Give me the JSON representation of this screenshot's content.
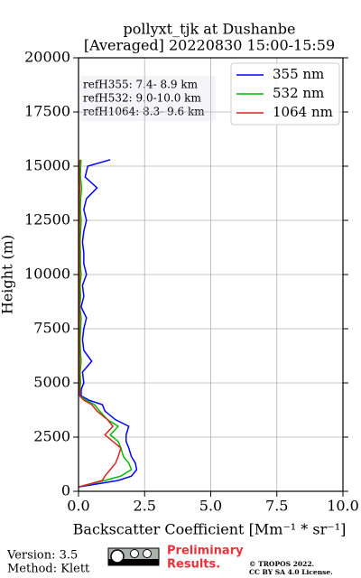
{
  "chart_data": {
    "type": "profile",
    "title": [
      "pollyxt_tjk at Dushanbe",
      "[Averaged] 20220830 15:00-15:59"
    ],
    "x_label": "Backscatter Coefficient [Mm⁻¹ * sr⁻¹]",
    "y_label": "Height (m)",
    "xlim": [
      0,
      10
    ],
    "xticks": [
      {
        "value": 0,
        "label": "0.0"
      },
      {
        "value": 2.5,
        "label": "2.5"
      },
      {
        "value": 5,
        "label": "5.0"
      },
      {
        "value": 7.5,
        "label": "7.5"
      },
      {
        "value": 10,
        "label": "10.0"
      }
    ],
    "ylim": [
      0,
      20000
    ],
    "yticks": [
      0,
      2500,
      5000,
      7500,
      10000,
      12500,
      15000,
      17500,
      20000
    ],
    "grid": true,
    "legend": "upper right",
    "heights": [
      200,
      500,
      700,
      1000,
      1300,
      1600,
      2000,
      2300,
      2600,
      3000,
      3300,
      3700,
      4000,
      4200,
      4400,
      4700,
      5000,
      5500,
      6000,
      6500,
      7000,
      7500,
      8000,
      8500,
      9000,
      9500,
      10000,
      10500,
      11000,
      11500,
      12000,
      12500,
      13000,
      13500,
      14000,
      14500,
      15000,
      15300
    ],
    "series": [
      {
        "name": "355 nm",
        "color": "#0000ff",
        "values": [
          0.0,
          1.5,
          2.0,
          2.2,
          2.15,
          2.0,
          1.9,
          1.8,
          1.8,
          1.9,
          1.4,
          1.0,
          0.9,
          0.4,
          0.1,
          0.1,
          0.2,
          0.15,
          0.5,
          0.2,
          0.15,
          0.2,
          0.3,
          0.1,
          0.2,
          0.15,
          0.3,
          0.2,
          0.2,
          0.15,
          0.2,
          0.3,
          0.2,
          0.3,
          0.7,
          0.25,
          0.35,
          1.2
        ]
      },
      {
        "name": "532 nm",
        "color": "#00bb00",
        "values": [
          0.0,
          1.0,
          1.6,
          2.0,
          1.9,
          1.7,
          1.6,
          1.5,
          1.2,
          1.5,
          1.1,
          0.8,
          0.6,
          0.3,
          0.05,
          0.05,
          0.08,
          0.06,
          0.1,
          0.07,
          0.06,
          0.08,
          0.1,
          0.05,
          0.08,
          0.06,
          0.1,
          0.07,
          0.07,
          0.06,
          0.08,
          0.1,
          0.07,
          0.08,
          0.12,
          0.07,
          0.08,
          0.1
        ]
      },
      {
        "name": "1064 nm",
        "color": "#dd2222",
        "values": [
          0.0,
          0.9,
          1.0,
          1.2,
          1.4,
          1.5,
          1.6,
          1.3,
          1.0,
          1.3,
          1.1,
          0.7,
          0.5,
          0.2,
          0.05,
          0.03,
          0.03,
          0.03,
          0.04,
          0.03,
          0.03,
          0.03,
          0.04,
          0.03,
          0.03,
          0.03,
          0.04,
          0.03,
          0.03,
          0.03,
          0.03,
          0.04,
          0.03,
          0.03,
          0.05,
          0.03,
          0.03,
          0.05
        ]
      }
    ],
    "annotations": [
      "refH355:  7.4- 8.9 km",
      "refH532:  9.0-10.0 km",
      "refH1064:  8.3- 9.6 km"
    ],
    "footer": {
      "version": "Version: 3.5",
      "method": "Method: Klett",
      "preliminary": [
        "Preliminary",
        "Results."
      ],
      "copyright": [
        "© TROPOS 2022.",
        "CC BY SA 4.0 License."
      ]
    }
  }
}
